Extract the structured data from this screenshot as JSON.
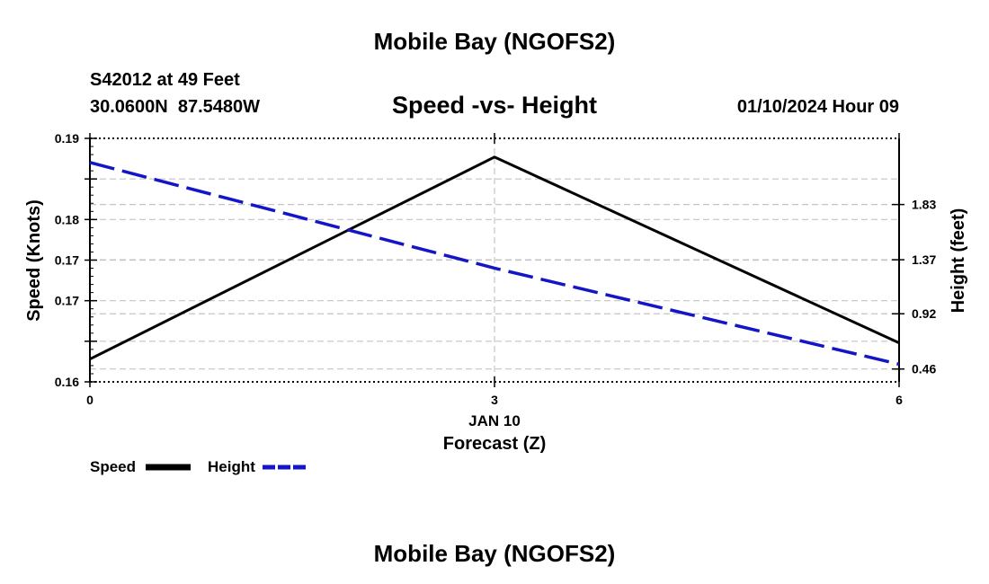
{
  "page": {
    "top_title": "Mobile Bay (NGOFS2)",
    "bottom_title": "Mobile Bay (NGOFS2)",
    "station_line": "S42012 at 49 Feet",
    "coords_line": "30.0600N  87.5480W",
    "date_line": "01/10/2024 Hour 09"
  },
  "chart_data": {
    "type": "line",
    "title": "Speed -vs- Height",
    "xlabel": "Forecast (Z)",
    "xlabel_date": "JAN 10",
    "ylabel": "Speed (Knots)",
    "y2label": "Height (feet)",
    "x": [
      0,
      3,
      6
    ],
    "x_ticks": [
      0,
      3,
      6
    ],
    "x_tick_labels": [
      "0",
      "3",
      "6"
    ],
    "xlim": [
      0,
      6
    ],
    "ylim": [
      0.16,
      0.19
    ],
    "y_ticks": [
      0.16,
      0.165,
      0.17,
      0.175,
      0.18,
      0.185,
      0.19
    ],
    "y_tick_labels": [
      "0.16",
      "0.16",
      "0.17",
      "0.17",
      "0.18",
      "0.18",
      "0.19"
    ],
    "y_tick_shown": [
      true,
      false,
      true,
      true,
      true,
      false,
      true
    ],
    "y2lim": [
      0.353,
      2.381
    ],
    "y2_ticks": [
      0.46,
      0.92,
      1.37,
      1.83
    ],
    "y2_tick_labels": [
      "0.46",
      "0.92",
      "1.37",
      "1.83"
    ],
    "grid": true,
    "series": [
      {
        "name": "Speed",
        "axis": "left",
        "color": "#000000",
        "dash": "solid",
        "values": [
          0.1628,
          0.1877,
          0.1648
        ]
      },
      {
        "name": "Height",
        "axis": "right",
        "color": "#1515c8",
        "dash": "dashed",
        "values": [
          2.18,
          1.3,
          0.5
        ]
      }
    ],
    "legend": [
      {
        "label": "Speed",
        "color": "#000000",
        "dash": "solid"
      },
      {
        "label": "Height",
        "color": "#1515c8",
        "dash": "dashed"
      }
    ]
  }
}
